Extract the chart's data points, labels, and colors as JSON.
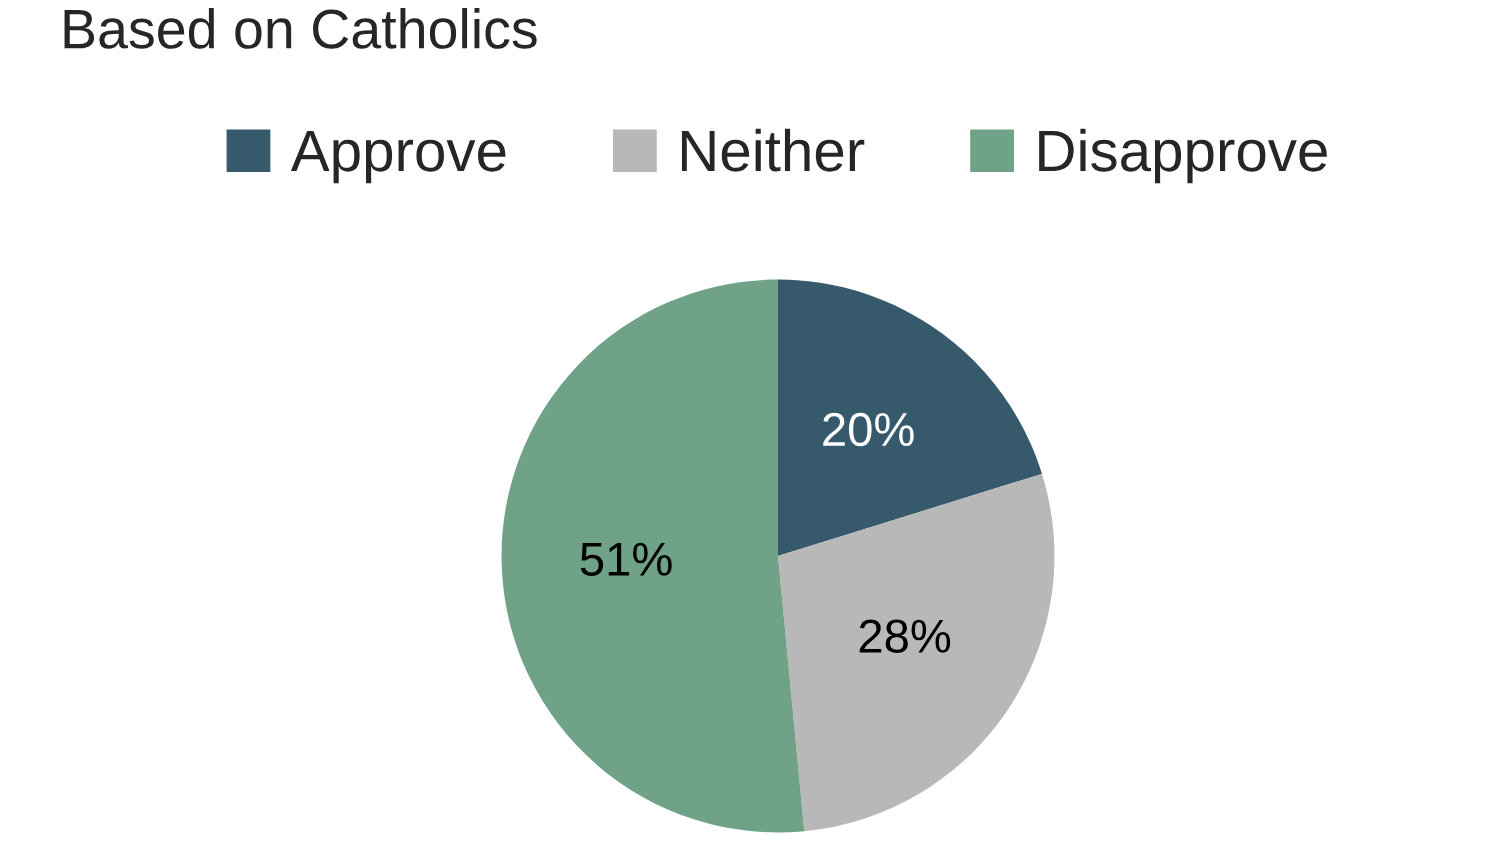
{
  "chart_data": {
    "type": "pie",
    "title": "Based on Catholics",
    "categories": [
      "Approve",
      "Neither",
      "Disapprove"
    ],
    "values": [
      20,
      28,
      51
    ],
    "colors": [
      "#365a6b",
      "#b8b8b8",
      "#6fa287"
    ],
    "value_labels": [
      "20%",
      "28%",
      "51%"
    ],
    "legend": "top"
  }
}
